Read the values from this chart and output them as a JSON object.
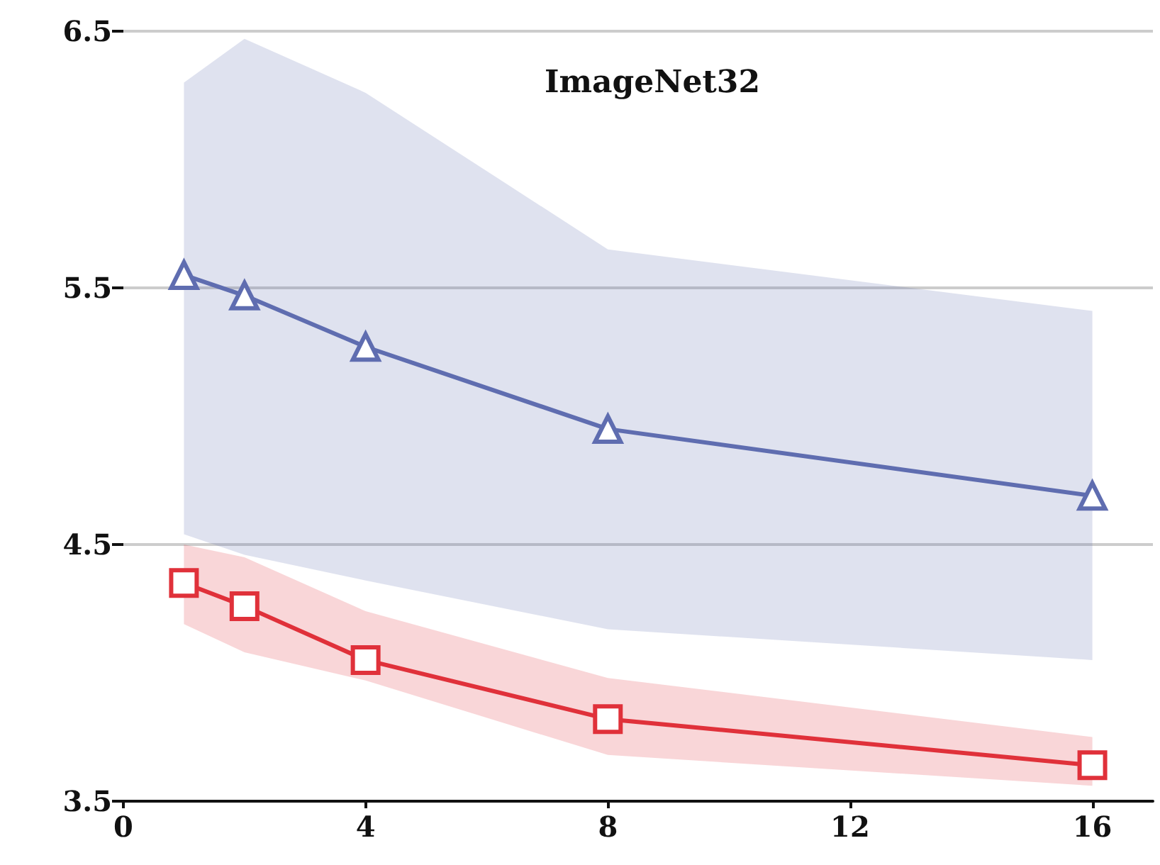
{
  "chart_data": {
    "type": "line",
    "title": "ImageNet32",
    "x": [
      1,
      2,
      4,
      8,
      16
    ],
    "xlim": [
      0,
      17
    ],
    "xticks": [
      0,
      4,
      8,
      12,
      16
    ],
    "ylim": [
      3.5,
      6.5
    ],
    "yticks": [
      3.5,
      4.5,
      5.5,
      6.5
    ],
    "grid": "y",
    "series": [
      {
        "color": "#5f6db0",
        "marker": "triangle",
        "values": [
          5.55,
          5.47,
          5.27,
          4.95,
          4.69
        ],
        "lower": [
          4.54,
          4.46,
          4.36,
          4.17,
          4.05
        ],
        "upper": [
          6.3,
          6.47,
          6.26,
          5.65,
          5.41
        ]
      },
      {
        "color": "#e0313a",
        "marker": "square",
        "values": [
          4.35,
          4.26,
          4.05,
          3.82,
          3.64
        ],
        "lower": [
          4.19,
          4.08,
          3.97,
          3.68,
          3.56
        ],
        "upper": [
          4.5,
          4.45,
          4.24,
          3.98,
          3.75
        ]
      }
    ]
  }
}
